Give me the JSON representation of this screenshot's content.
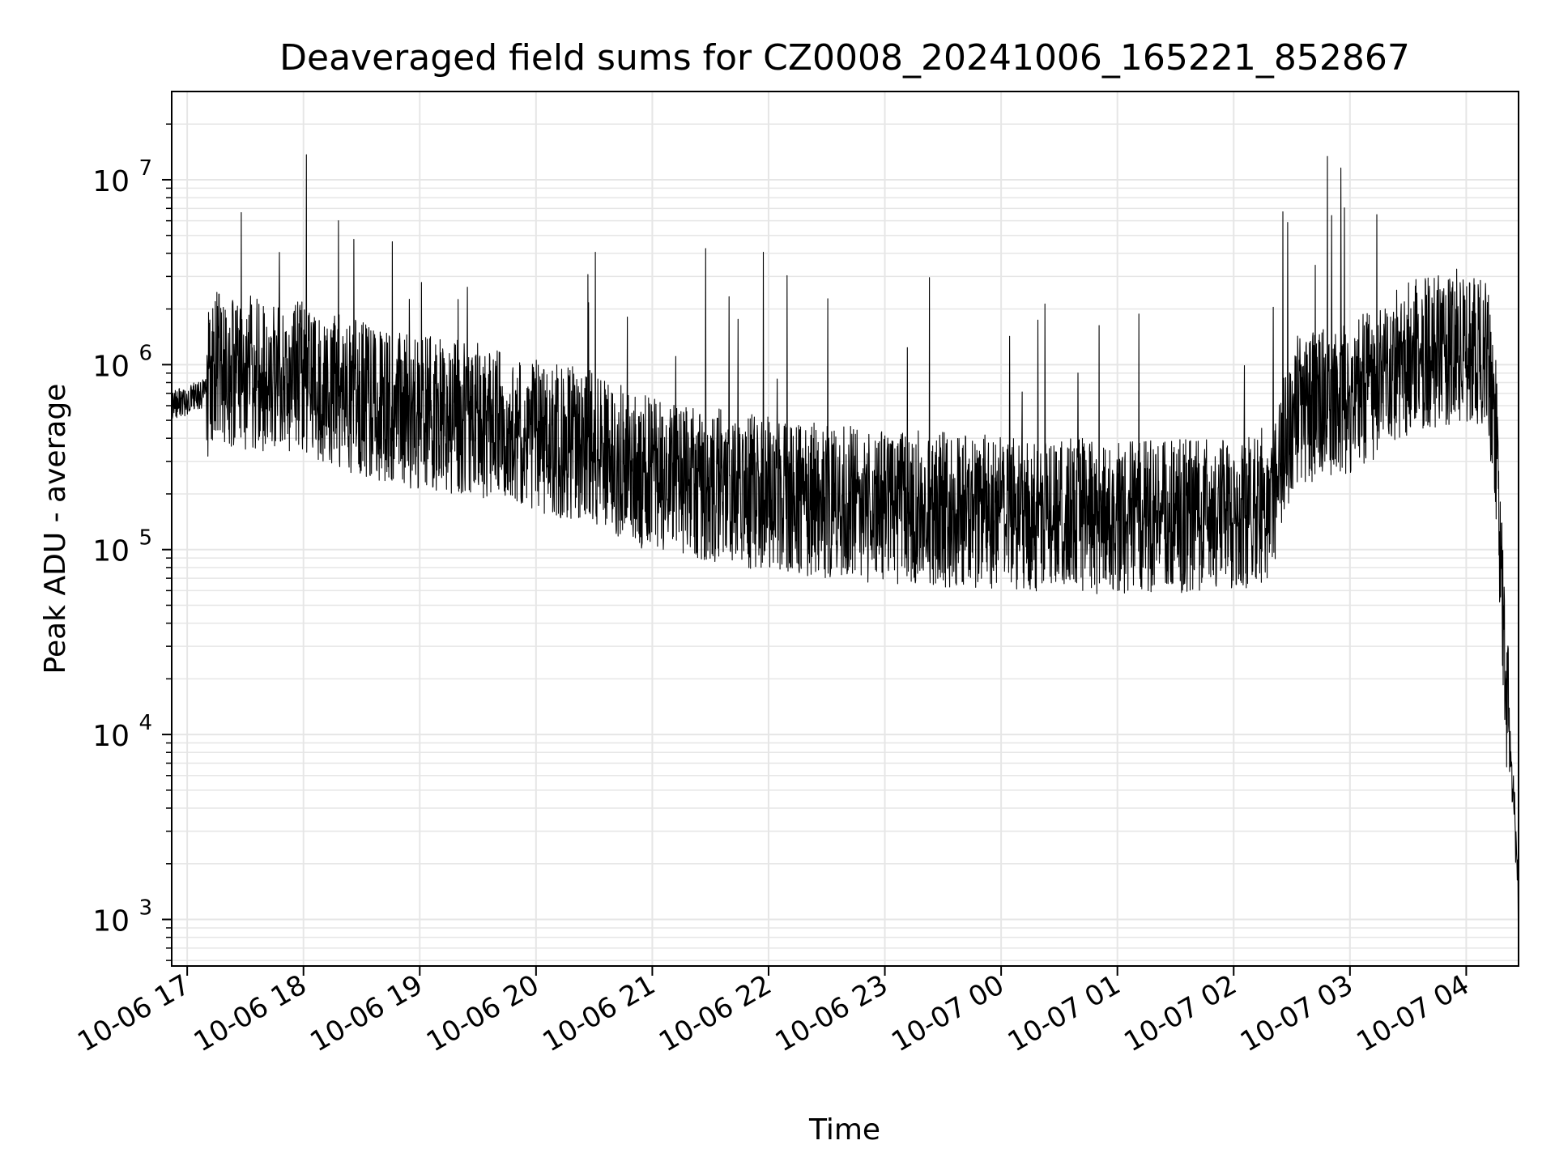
{
  "chart_data": {
    "type": "line",
    "title": "Deaveraged field sums for CZ0008_20241006_165221_852867",
    "xlabel": "Time",
    "ylabel": "Peak ADU - average",
    "y_scale": "log",
    "ylim": [
      560,
      30000000
    ],
    "xlim": [
      "2024-10-06 16:52",
      "2024-10-07 04:27"
    ],
    "x_tick_labels": [
      "10-06 17",
      "10-06 18",
      "10-06 19",
      "10-06 20",
      "10-06 21",
      "10-06 22",
      "10-06 23",
      "10-07 00",
      "10-07 01",
      "10-07 02",
      "10-07 03",
      "10-07 04"
    ],
    "x_ticks": [
      "2024-10-06 17:00",
      "2024-10-06 18:00",
      "2024-10-06 19:00",
      "2024-10-06 20:00",
      "2024-10-06 21:00",
      "2024-10-06 22:00",
      "2024-10-06 23:00",
      "2024-10-07 00:00",
      "2024-10-07 01:00",
      "2024-10-07 02:00",
      "2024-10-07 03:00",
      "2024-10-07 04:00"
    ],
    "y_ticks": [
      1000,
      10000,
      100000,
      1000000,
      10000000
    ],
    "y_tick_labels": [
      {
        "base": "10",
        "exp": "3"
      },
      {
        "base": "10",
        "exp": "4"
      },
      {
        "base": "10",
        "exp": "5"
      },
      {
        "base": "10",
        "exp": "6"
      },
      {
        "base": "10",
        "exp": "7"
      }
    ],
    "grid": true,
    "line_color": "#000000",
    "grid_color": "#e6e6e6",
    "series": [
      {
        "color": "#000000",
        "x": [
          "2024-10-06 16:52",
          "2024-10-06 17:00",
          "2024-10-06 17:10",
          "2024-10-06 17:15",
          "2024-10-06 17:30",
          "2024-10-06 17:45",
          "2024-10-06 18:00",
          "2024-10-06 18:30",
          "2024-10-06 19:00",
          "2024-10-06 19:30",
          "2024-10-06 20:00",
          "2024-10-06 20:30",
          "2024-10-06 21:00",
          "2024-10-06 22:00",
          "2024-10-06 23:00",
          "2024-10-07 00:00",
          "2024-10-07 01:00",
          "2024-10-07 02:00",
          "2024-10-07 02:20",
          "2024-10-07 02:30",
          "2024-10-07 03:00",
          "2024-10-07 03:30",
          "2024-10-07 04:00",
          "2024-10-07 04:10",
          "2024-10-07 04:15",
          "2024-10-07 04:20",
          "2024-10-07 04:25",
          "2024-10-07 04:27"
        ],
        "y": [
          600000,
          640000,
          720000,
          1000000,
          900000,
          900000,
          850000,
          650000,
          550000,
          500000,
          420000,
          350000,
          250000,
          200000,
          170000,
          160000,
          150000,
          155000,
          180000,
          550000,
          650000,
          1100000,
          1300000,
          1200000,
          500000,
          20000,
          4000,
          1000
        ]
      }
    ]
  }
}
